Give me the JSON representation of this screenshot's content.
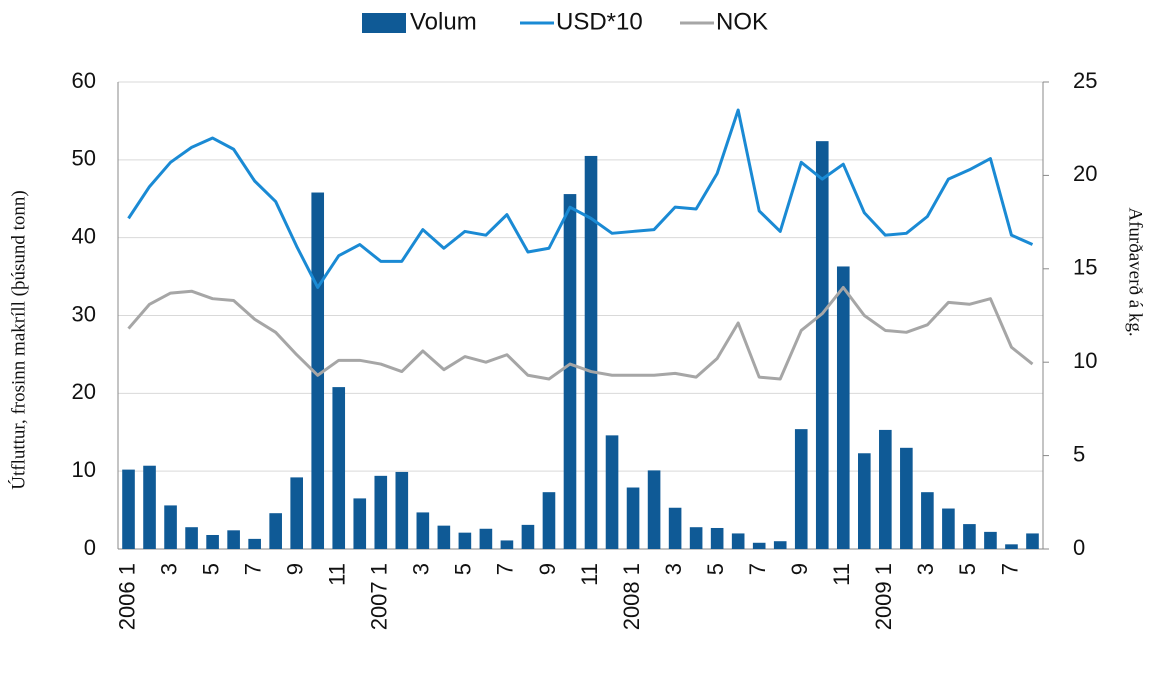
{
  "chart_data": {
    "type": "bar",
    "y_label": "Útfluttur, frosinn makríll (þúsund tonn)",
    "y2_label": "Afurðaverð á kg.",
    "categories": [
      "2006 1",
      null,
      "3",
      null,
      "5",
      null,
      "7",
      null,
      "9",
      null,
      "11",
      null,
      "2007 1",
      null,
      "3",
      null,
      "5",
      null,
      "7",
      null,
      "9",
      null,
      "11",
      null,
      "2008 1",
      null,
      "3",
      null,
      "5",
      null,
      "7",
      null,
      "9",
      null,
      "11",
      null,
      "2009 1",
      null,
      "3",
      null,
      "5",
      null,
      "7",
      null
    ],
    "series": [
      {
        "name": "Volum",
        "type": "bar",
        "color": "#0f5a96",
        "values": [
          10.2,
          10.7,
          5.6,
          2.8,
          1.8,
          2.4,
          1.3,
          4.6,
          9.2,
          45.8,
          20.8,
          6.5,
          9.4,
          9.9,
          4.7,
          3.0,
          2.1,
          2.6,
          1.1,
          3.1,
          7.3,
          45.6,
          50.5,
          14.6,
          7.9,
          10.1,
          5.3,
          2.8,
          2.7,
          2.0,
          0.8,
          1.0,
          15.4,
          52.4,
          36.3,
          12.3,
          15.3,
          13.0,
          7.3,
          5.2,
          3.2,
          2.2,
          0.6,
          2.0
        ]
      },
      {
        "name": "USD*10",
        "type": "line",
        "axis": "y2",
        "color": "#1a8ad4",
        "values": [
          17.7,
          19.4,
          20.7,
          21.5,
          22.0,
          21.4,
          19.7,
          18.6,
          16.2,
          14.0,
          15.7,
          16.3,
          15.4,
          15.4,
          17.1,
          16.1,
          17.0,
          16.8,
          17.9,
          15.9,
          16.1,
          18.3,
          17.7,
          16.9,
          17.0,
          17.1,
          18.3,
          18.2,
          20.1,
          23.5,
          18.1,
          17.0,
          20.7,
          19.8,
          20.6,
          18.0,
          16.8,
          16.9,
          17.8,
          19.8,
          20.3,
          20.9,
          16.8,
          16.3
        ]
      },
      {
        "name": "NOK",
        "type": "line",
        "axis": "y2",
        "color": "#a6a6a6",
        "values": [
          11.8,
          13.1,
          13.7,
          13.8,
          13.4,
          13.3,
          12.3,
          11.6,
          10.4,
          9.3,
          10.1,
          10.1,
          9.9,
          9.5,
          10.6,
          9.6,
          10.3,
          10.0,
          10.4,
          9.3,
          9.1,
          9.9,
          9.5,
          9.3,
          9.3,
          9.3,
          9.4,
          9.2,
          10.2,
          12.1,
          9.2,
          9.1,
          11.7,
          12.6,
          14.0,
          12.5,
          11.7,
          11.6,
          12.0,
          13.2,
          13.1,
          13.4,
          10.8,
          9.9
        ]
      }
    ],
    "ylim": [
      0,
      60
    ],
    "yticks": [
      0,
      10,
      20,
      30,
      40,
      50,
      60
    ],
    "y2lim": [
      0,
      25
    ],
    "y2ticks": [
      0,
      5,
      10,
      15,
      20,
      25
    ],
    "grid": true,
    "legend": "top"
  }
}
